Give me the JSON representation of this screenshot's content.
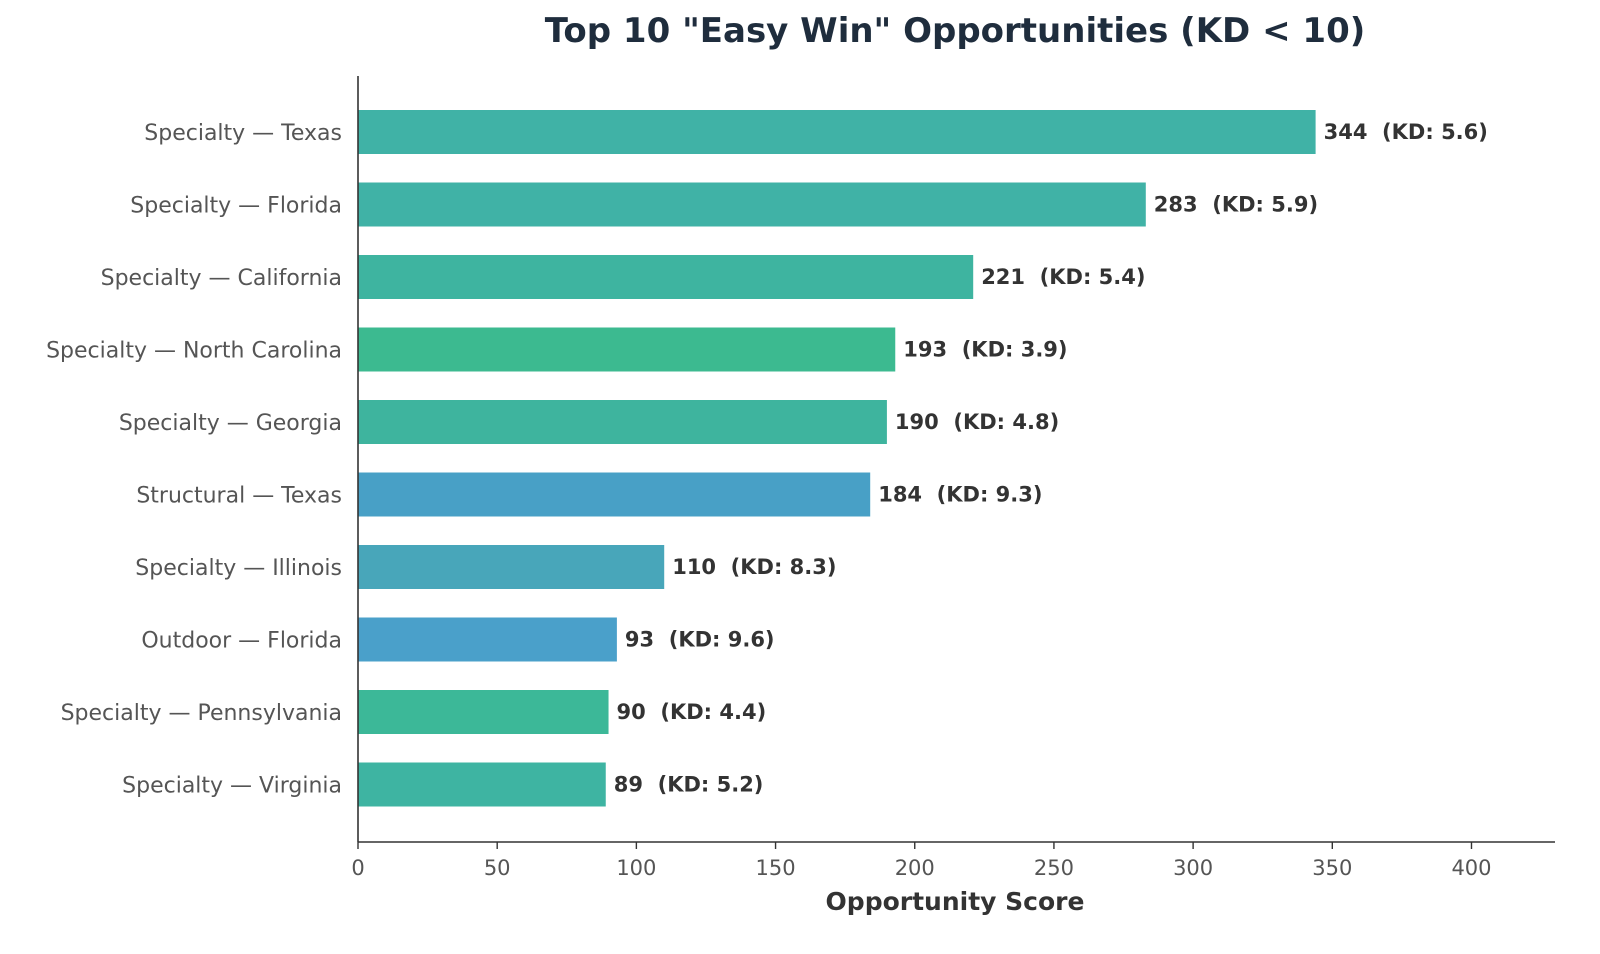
{
  "chart_data": {
    "type": "bar",
    "orientation": "horizontal",
    "title": "Top 10 \"Easy Win\" Opportunities (KD < 10)",
    "xlabel": "Opportunity Score",
    "ylabel": "",
    "xlim": [
      0,
      430
    ],
    "xticks": [
      0,
      50,
      100,
      150,
      200,
      250,
      300,
      350,
      400
    ],
    "grid": false,
    "legend": "none",
    "categories": [
      "Specialty — Texas",
      "Specialty — Florida",
      "Specialty — California",
      "Specialty — North Carolina",
      "Specialty — Georgia",
      "Structural — Texas",
      "Specialty — Illinois",
      "Outdoor — Florida",
      "Specialty — Pennsylvania",
      "Specialty — Virginia"
    ],
    "values": [
      344,
      283,
      221,
      193,
      190,
      184,
      110,
      93,
      90,
      89
    ],
    "kd": [
      5.6,
      5.9,
      5.4,
      3.9,
      4.8,
      9.3,
      8.3,
      9.6,
      4.4,
      5.2
    ],
    "data_labels": [
      "344  (KD: 5.6)",
      "283  (KD: 5.9)",
      "221  (KD: 5.4)",
      "193  (KD: 3.9)",
      "190  (KD: 4.8)",
      "184  (KD: 9.3)",
      "110  (KD: 8.3)",
      "93  (KD: 9.6)",
      "90  (KD: 4.4)",
      "89  (KD: 5.2)"
    ],
    "colors": [
      "#40b2a6",
      "#40b2a6",
      "#3eb4a0",
      "#3cba90",
      "#3eb49e",
      "#48a0c6",
      "#48a6ba",
      "#4aa0ca",
      "#3cb898",
      "#3eb4a2"
    ]
  }
}
